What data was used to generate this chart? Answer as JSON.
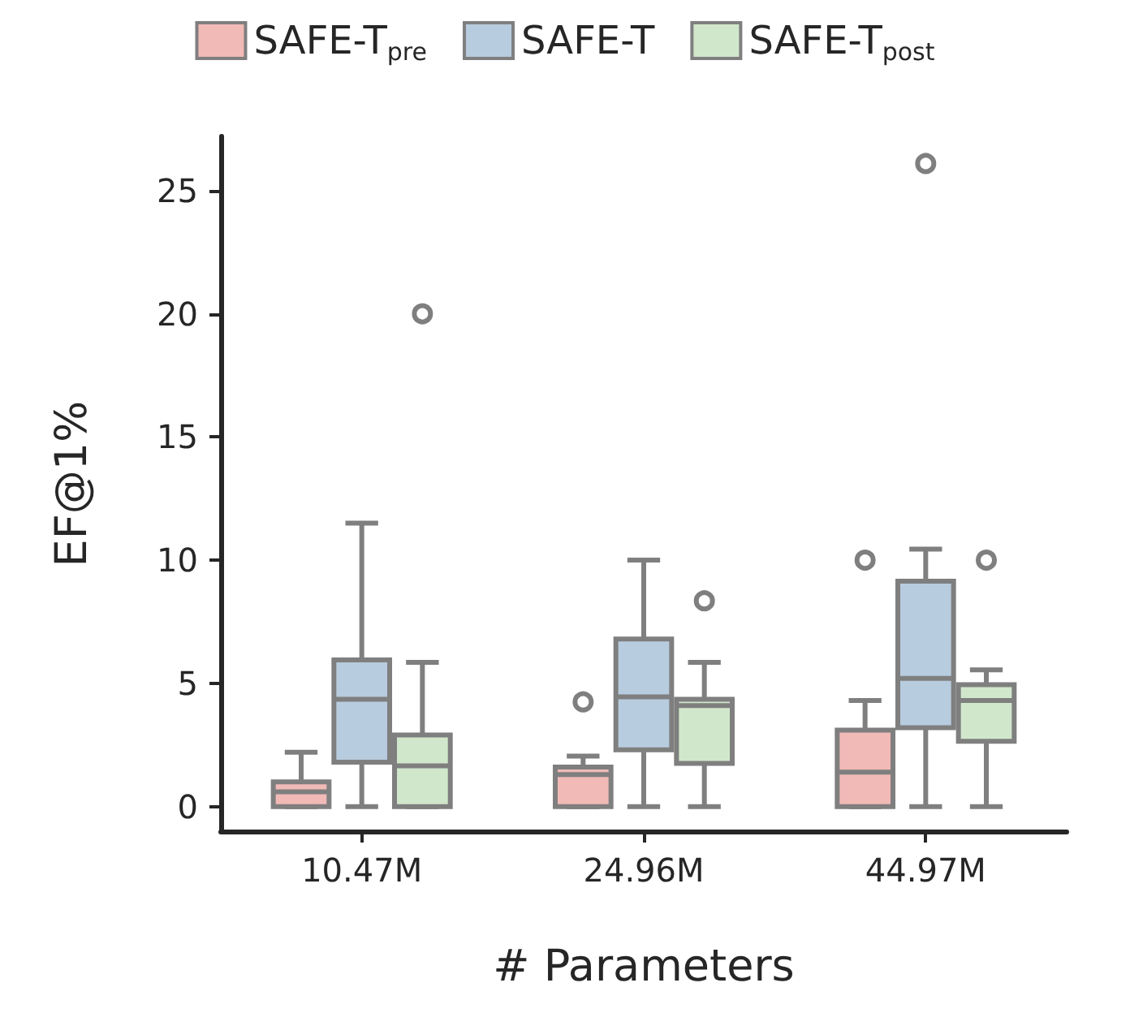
{
  "chart_data": {
    "type": "box",
    "xlabel": "# Parameters",
    "ylabel": "EF@1%",
    "categories": [
      "10.47M",
      "24.96M",
      "44.97M"
    ],
    "ylim": [
      -1,
      27.2
    ],
    "yticks": [
      0,
      5,
      10,
      15,
      20,
      25
    ],
    "legend": "top",
    "grid": false,
    "series": [
      {
        "name": "SAFE-T$_{pre}$",
        "color": "#f1bab7",
        "boxes": [
          {
            "low": 0,
            "q1": 0,
            "median": 0.6,
            "q3": 1.0,
            "high": 2.2
          },
          {
            "low": 0,
            "q1": 0,
            "median": 1.3,
            "q3": 1.6,
            "high": 2.05,
            "outliers": [
              4.25
            ]
          },
          {
            "low": 0,
            "q1": 0,
            "median": 1.4,
            "q3": 3.1,
            "high": 4.3,
            "outliers": [
              10
            ]
          }
        ]
      },
      {
        "name": "SAFE-T",
        "color": "#b8ccdf",
        "boxes": [
          {
            "low": 0,
            "q1": 1.8,
            "median": 4.35,
            "q3": 5.95,
            "high": 11.5
          },
          {
            "low": 0,
            "q1": 2.3,
            "median": 4.45,
            "q3": 6.8,
            "high": 10
          },
          {
            "low": 0,
            "q1": 3.2,
            "median": 5.2,
            "q3": 9.15,
            "high": 10.45,
            "outliers": [
              26.1
            ]
          }
        ]
      },
      {
        "name": "SAFE-T$_{post}$",
        "color": "#d1e7cc",
        "boxes": [
          {
            "low": 0,
            "q1": 0,
            "median": 1.65,
            "q3": 2.9,
            "high": 5.85,
            "outliers": [
              20
            ]
          },
          {
            "low": 0,
            "q1": 1.75,
            "median": 4.1,
            "q3": 4.35,
            "high": 5.85,
            "outliers": [
              8.35
            ]
          },
          {
            "low": 0,
            "q1": 2.65,
            "median": 4.3,
            "q3": 4.95,
            "high": 5.55,
            "outliers": [
              10
            ]
          }
        ]
      }
    ]
  }
}
